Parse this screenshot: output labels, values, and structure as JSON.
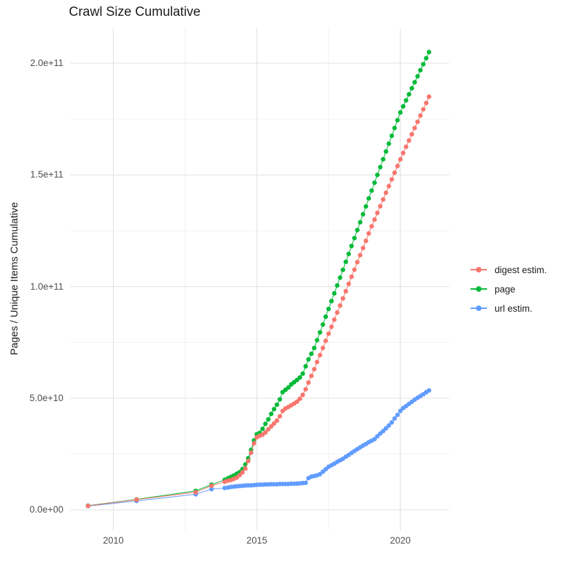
{
  "chart_data": {
    "type": "scatter",
    "title": "Crawl Size Cumulative",
    "xlabel": "",
    "ylabel": "Pages / Unique Items Cumulative",
    "values_unit": "billions (1e9 items)",
    "grid": {
      "major": "#e4e4e4",
      "minor": "#f1f1f1",
      "visible": true
    },
    "legend_position": "right",
    "xlim": [
      2008.5,
      2021.7
    ],
    "ylim": [
      -8.6,
      215.7
    ],
    "x_ticks": [
      2010,
      2015,
      2020
    ],
    "x_tick_labels": [
      "2010",
      "2015",
      "2020"
    ],
    "x_minor_gridlines": [
      2012.5,
      2017.5
    ],
    "y_tick_values": [
      0,
      50,
      100,
      150,
      200
    ],
    "y_tick_labels": [
      "0.0e+00",
      "5.0e+10",
      "1.0e+11",
      "1.5e+11",
      "2.0e+11"
    ],
    "y_minor_gridlines": [
      25,
      75,
      125,
      175
    ],
    "series": [
      {
        "name": "digest estim.",
        "color": "#F8766D",
        "points": [
          [
            2009.12,
            1.8
          ],
          [
            2010.81,
            4.6
          ],
          [
            2012.87,
            7.9
          ],
          [
            2013.42,
            10.8
          ],
          [
            2013.88,
            12.6
          ],
          [
            2014.0,
            13.1
          ],
          [
            2014.1,
            13.4
          ],
          [
            2014.2,
            13.9
          ],
          [
            2014.3,
            14.5
          ],
          [
            2014.4,
            15.6
          ],
          [
            2014.5,
            16.8
          ],
          [
            2014.6,
            18.5
          ],
          [
            2014.7,
            21.9
          ],
          [
            2014.8,
            25.6
          ],
          [
            2014.9,
            29.8
          ],
          [
            2015.0,
            32.5
          ],
          [
            2015.1,
            33.2
          ],
          [
            2015.2,
            33.7
          ],
          [
            2015.3,
            34.7
          ],
          [
            2015.4,
            36.1
          ],
          [
            2015.5,
            37.4
          ],
          [
            2015.6,
            38.7
          ],
          [
            2015.7,
            40.0
          ],
          [
            2015.8,
            41.9
          ],
          [
            2015.9,
            44.3
          ],
          [
            2016.0,
            45.4
          ],
          [
            2016.1,
            46.1
          ],
          [
            2016.2,
            46.9
          ],
          [
            2016.3,
            47.6
          ],
          [
            2016.4,
            48.5
          ],
          [
            2016.5,
            49.8
          ],
          [
            2016.6,
            51.5
          ],
          [
            2016.7,
            54.0
          ],
          [
            2016.8,
            57.0
          ],
          [
            2016.9,
            60.0
          ],
          [
            2017.0,
            63.0
          ],
          [
            2017.1,
            66.2
          ],
          [
            2017.2,
            69.3
          ],
          [
            2017.3,
            72.5
          ],
          [
            2017.4,
            75.7
          ],
          [
            2017.5,
            78.9
          ],
          [
            2017.6,
            82.0
          ],
          [
            2017.7,
            85.2
          ],
          [
            2017.8,
            88.4
          ],
          [
            2017.9,
            91.5
          ],
          [
            2018.0,
            94.7
          ],
          [
            2018.1,
            97.9
          ],
          [
            2018.2,
            101.2
          ],
          [
            2018.3,
            104.4
          ],
          [
            2018.4,
            107.6
          ],
          [
            2018.5,
            110.9
          ],
          [
            2018.6,
            114.1
          ],
          [
            2018.7,
            117.3
          ],
          [
            2018.8,
            120.5
          ],
          [
            2018.9,
            123.8
          ],
          [
            2019.0,
            127.0
          ],
          [
            2019.1,
            130.0
          ],
          [
            2019.2,
            133.0
          ],
          [
            2019.3,
            136.0
          ],
          [
            2019.4,
            139.0
          ],
          [
            2019.5,
            142.0
          ],
          [
            2019.6,
            145.0
          ],
          [
            2019.7,
            148.0
          ],
          [
            2019.8,
            151.0
          ],
          [
            2019.9,
            154.0
          ],
          [
            2020.0,
            157.0
          ],
          [
            2020.1,
            159.8
          ],
          [
            2020.2,
            162.6
          ],
          [
            2020.3,
            165.4
          ],
          [
            2020.4,
            168.2
          ],
          [
            2020.5,
            171.0
          ],
          [
            2020.6,
            173.8
          ],
          [
            2020.7,
            176.6
          ],
          [
            2020.8,
            179.4
          ],
          [
            2020.9,
            182.2
          ],
          [
            2021.0,
            185.0
          ]
        ]
      },
      {
        "name": "page",
        "color": "#00BA38",
        "points": [
          [
            2009.12,
            1.9
          ],
          [
            2010.81,
            4.7
          ],
          [
            2012.87,
            8.5
          ],
          [
            2013.42,
            11.3
          ],
          [
            2013.88,
            13.5
          ],
          [
            2014.0,
            14.2
          ],
          [
            2014.1,
            14.8
          ],
          [
            2014.2,
            15.4
          ],
          [
            2014.3,
            16.2
          ],
          [
            2014.4,
            16.9
          ],
          [
            2014.5,
            18.3
          ],
          [
            2014.6,
            20.4
          ],
          [
            2014.7,
            23.1
          ],
          [
            2014.8,
            26.9
          ],
          [
            2014.9,
            31.1
          ],
          [
            2015.0,
            33.9
          ],
          [
            2015.1,
            34.5
          ],
          [
            2015.2,
            36.3
          ],
          [
            2015.3,
            38.5
          ],
          [
            2015.4,
            40.5
          ],
          [
            2015.5,
            43.0
          ],
          [
            2015.6,
            45.1
          ],
          [
            2015.7,
            47.1
          ],
          [
            2015.8,
            49.5
          ],
          [
            2015.9,
            52.7
          ],
          [
            2016.0,
            53.8
          ],
          [
            2016.1,
            54.8
          ],
          [
            2016.2,
            56.2
          ],
          [
            2016.3,
            57.2
          ],
          [
            2016.4,
            58.2
          ],
          [
            2016.5,
            59.3
          ],
          [
            2016.6,
            61.0
          ],
          [
            2016.7,
            64.3
          ],
          [
            2016.8,
            67.4
          ],
          [
            2016.9,
            69.9
          ],
          [
            2017.0,
            72.5
          ],
          [
            2017.1,
            76.0
          ],
          [
            2017.2,
            79.5
          ],
          [
            2017.3,
            83.0
          ],
          [
            2017.4,
            86.5
          ],
          [
            2017.5,
            90.0
          ],
          [
            2017.6,
            93.5
          ],
          [
            2017.7,
            97.0
          ],
          [
            2017.8,
            100.5
          ],
          [
            2017.9,
            104.0
          ],
          [
            2018.0,
            107.5
          ],
          [
            2018.1,
            111.1
          ],
          [
            2018.2,
            114.6
          ],
          [
            2018.3,
            118.2
          ],
          [
            2018.4,
            121.7
          ],
          [
            2018.5,
            125.3
          ],
          [
            2018.6,
            128.8
          ],
          [
            2018.7,
            132.4
          ],
          [
            2018.8,
            135.9
          ],
          [
            2018.9,
            139.5
          ],
          [
            2019.0,
            143.0
          ],
          [
            2019.1,
            146.5
          ],
          [
            2019.2,
            150.0
          ],
          [
            2019.3,
            153.5
          ],
          [
            2019.4,
            157.0
          ],
          [
            2019.5,
            160.5
          ],
          [
            2019.6,
            164.0
          ],
          [
            2019.7,
            167.5
          ],
          [
            2019.8,
            171.0
          ],
          [
            2019.9,
            174.5
          ],
          [
            2020.0,
            178.0
          ],
          [
            2020.1,
            180.7
          ],
          [
            2020.2,
            183.4
          ],
          [
            2020.3,
            186.1
          ],
          [
            2020.4,
            188.8
          ],
          [
            2020.5,
            191.5
          ],
          [
            2020.6,
            194.2
          ],
          [
            2020.7,
            196.9
          ],
          [
            2020.8,
            199.6
          ],
          [
            2020.9,
            202.3
          ],
          [
            2021.0,
            205.0
          ]
        ]
      },
      {
        "name": "url estim.",
        "color": "#619CFF",
        "points": [
          [
            2009.12,
            1.7
          ],
          [
            2010.81,
            4.0
          ],
          [
            2012.87,
            7.0
          ],
          [
            2013.42,
            9.3
          ],
          [
            2013.88,
            9.8
          ],
          [
            2014.0,
            10.0
          ],
          [
            2014.1,
            10.3
          ],
          [
            2014.2,
            10.4
          ],
          [
            2014.3,
            10.6
          ],
          [
            2014.4,
            10.7
          ],
          [
            2014.5,
            10.8
          ],
          [
            2014.6,
            10.9
          ],
          [
            2014.7,
            11.0
          ],
          [
            2014.8,
            11.0
          ],
          [
            2014.9,
            11.1
          ],
          [
            2015.0,
            11.2
          ],
          [
            2015.1,
            11.3
          ],
          [
            2015.2,
            11.3
          ],
          [
            2015.3,
            11.4
          ],
          [
            2015.4,
            11.4
          ],
          [
            2015.5,
            11.5
          ],
          [
            2015.6,
            11.5
          ],
          [
            2015.7,
            11.5
          ],
          [
            2015.8,
            11.6
          ],
          [
            2015.9,
            11.6
          ],
          [
            2016.0,
            11.6
          ],
          [
            2016.1,
            11.6
          ],
          [
            2016.2,
            11.7
          ],
          [
            2016.3,
            11.7
          ],
          [
            2016.4,
            11.8
          ],
          [
            2016.5,
            11.9
          ],
          [
            2016.6,
            12.0
          ],
          [
            2016.7,
            12.1
          ],
          [
            2016.8,
            14.2
          ],
          [
            2016.9,
            14.9
          ],
          [
            2017.0,
            15.2
          ],
          [
            2017.1,
            15.5
          ],
          [
            2017.2,
            16.0
          ],
          [
            2017.3,
            17.1
          ],
          [
            2017.4,
            18.2
          ],
          [
            2017.5,
            19.3
          ],
          [
            2017.6,
            20.0
          ],
          [
            2017.7,
            20.7
          ],
          [
            2017.8,
            21.5
          ],
          [
            2017.9,
            22.2
          ],
          [
            2018.0,
            22.9
          ],
          [
            2018.1,
            23.8
          ],
          [
            2018.2,
            24.6
          ],
          [
            2018.3,
            25.5
          ],
          [
            2018.4,
            26.4
          ],
          [
            2018.5,
            27.2
          ],
          [
            2018.6,
            28.0
          ],
          [
            2018.7,
            28.8
          ],
          [
            2018.8,
            29.5
          ],
          [
            2018.9,
            30.3
          ],
          [
            2019.0,
            31.0
          ],
          [
            2019.1,
            31.7
          ],
          [
            2019.2,
            33.0
          ],
          [
            2019.3,
            34.2
          ],
          [
            2019.4,
            35.3
          ],
          [
            2019.5,
            36.5
          ],
          [
            2019.6,
            37.8
          ],
          [
            2019.7,
            39.2
          ],
          [
            2019.8,
            40.9
          ],
          [
            2019.9,
            42.5
          ],
          [
            2020.0,
            44.3
          ],
          [
            2020.1,
            45.6
          ],
          [
            2020.2,
            46.5
          ],
          [
            2020.3,
            47.5
          ],
          [
            2020.4,
            48.4
          ],
          [
            2020.5,
            49.4
          ],
          [
            2020.6,
            50.2
          ],
          [
            2020.7,
            51.0
          ],
          [
            2020.8,
            51.8
          ],
          [
            2020.9,
            52.7
          ],
          [
            2021.0,
            53.5
          ]
        ]
      }
    ]
  }
}
